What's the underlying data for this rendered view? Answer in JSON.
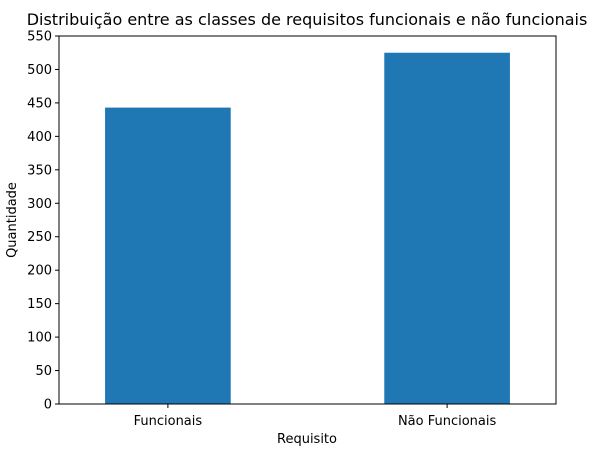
{
  "chart_data": {
    "type": "bar",
    "title": "Distribuição entre as classes de requisitos funcionais e não funcionais",
    "xlabel": "Requisito",
    "ylabel": "Quantidade",
    "categories": [
      "Funcionais",
      "Não Funcionais"
    ],
    "values": [
      443,
      525
    ],
    "ylim": [
      0,
      550
    ],
    "yticks": [
      0,
      50,
      100,
      150,
      200,
      250,
      300,
      350,
      400,
      450,
      500,
      550
    ],
    "grid": false,
    "legend": "none",
    "bar_color": "#1f77b4"
  }
}
